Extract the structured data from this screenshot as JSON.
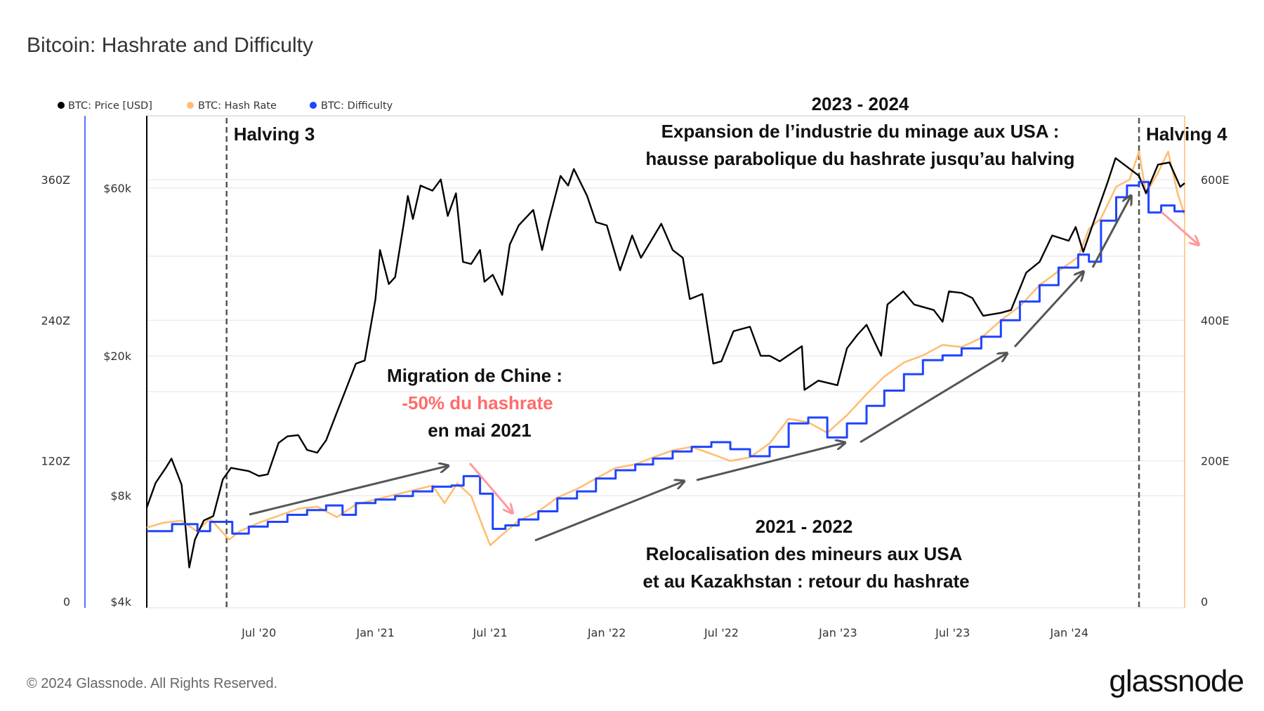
{
  "title": "Bitcoin: Hashrate and Difficulty",
  "footer": "© 2024 Glassnode. All Rights Reserved.",
  "logo": "glassnode",
  "colors": {
    "price": "#000000",
    "hash_rate": "#ffbe73",
    "difficulty": "#1f44ff",
    "highlight": "#ff7070",
    "arrow": "#555555"
  },
  "chart_data": {
    "type": "line",
    "x_range": [
      "2020-01-06",
      "2024-07-01"
    ],
    "x_ticks": [
      {
        "date": "2020-07-01",
        "label": "Jul '20"
      },
      {
        "date": "2021-01-01",
        "label": "Jan '21"
      },
      {
        "date": "2021-07-01",
        "label": "Jul '21"
      },
      {
        "date": "2022-01-01",
        "label": "Jan '22"
      },
      {
        "date": "2022-07-01",
        "label": "Jul '22"
      },
      {
        "date": "2023-01-01",
        "label": "Jan '23"
      },
      {
        "date": "2023-07-01",
        "label": "Jul '23"
      },
      {
        "date": "2024-01-01",
        "label": "Jan '24"
      }
    ],
    "axes": {
      "difficulty": {
        "side": "far-left",
        "scale": "linear",
        "range": [
          0,
          360
        ],
        "ticks": [
          {
            "v": 0,
            "label": "0"
          },
          {
            "v": 120,
            "label": "120Z"
          },
          {
            "v": 240,
            "label": "240Z"
          },
          {
            "v": 360,
            "label": "360Z"
          }
        ]
      },
      "price": {
        "side": "left",
        "scale": "log",
        "range": [
          4000,
          60000
        ],
        "ticks": [
          {
            "v": 4000,
            "label": "$4k"
          },
          {
            "v": 8000,
            "label": "$8k"
          },
          {
            "v": 20000,
            "label": "$20k"
          },
          {
            "v": 60000,
            "label": "$60k"
          }
        ]
      },
      "hash_rate": {
        "side": "right",
        "scale": "linear",
        "range": [
          0,
          600
        ],
        "ticks": [
          {
            "v": 0,
            "label": "0"
          },
          {
            "v": 200,
            "label": "200E"
          },
          {
            "v": 400,
            "label": "400E"
          },
          {
            "v": 600,
            "label": "600E"
          }
        ]
      }
    },
    "legend": {
      "placement": "top-left",
      "items": [
        "BTC: Price [USD]",
        "BTC: Hash Rate",
        "BTC: Difficulty"
      ]
    },
    "series": [
      {
        "name": "BTC: Price [USD]",
        "axis": "price",
        "points": [
          [
            "2020-01-06",
            7400
          ],
          [
            "2020-01-20",
            8700
          ],
          [
            "2020-02-05",
            9600
          ],
          [
            "2020-02-14",
            10200
          ],
          [
            "2020-03-01",
            8600
          ],
          [
            "2020-03-13",
            5000
          ],
          [
            "2020-03-22",
            6000
          ],
          [
            "2020-04-05",
            6800
          ],
          [
            "2020-04-20",
            7000
          ],
          [
            "2020-05-05",
            8900
          ],
          [
            "2020-05-18",
            9600
          ],
          [
            "2020-06-01",
            9500
          ],
          [
            "2020-06-15",
            9400
          ],
          [
            "2020-07-01",
            9100
          ],
          [
            "2020-07-15",
            9200
          ],
          [
            "2020-08-01",
            11300
          ],
          [
            "2020-08-15",
            11800
          ],
          [
            "2020-09-01",
            11900
          ],
          [
            "2020-09-15",
            10800
          ],
          [
            "2020-10-01",
            10600
          ],
          [
            "2020-10-15",
            11500
          ],
          [
            "2020-11-01",
            13800
          ],
          [
            "2020-11-15",
            16000
          ],
          [
            "2020-12-01",
            19000
          ],
          [
            "2020-12-15",
            19400
          ],
          [
            "2021-01-01",
            29000
          ],
          [
            "2021-01-08",
            40000
          ],
          [
            "2021-01-22",
            32000
          ],
          [
            "2021-02-01",
            33500
          ],
          [
            "2021-02-15",
            48000
          ],
          [
            "2021-02-21",
            57000
          ],
          [
            "2021-03-01",
            49000
          ],
          [
            "2021-03-13",
            61000
          ],
          [
            "2021-04-01",
            59000
          ],
          [
            "2021-04-14",
            63500
          ],
          [
            "2021-04-25",
            50000
          ],
          [
            "2021-05-08",
            58000
          ],
          [
            "2021-05-19",
            37000
          ],
          [
            "2021-06-01",
            36500
          ],
          [
            "2021-06-15",
            40000
          ],
          [
            "2021-06-22",
            32500
          ],
          [
            "2021-07-05",
            34000
          ],
          [
            "2021-07-20",
            29800
          ],
          [
            "2021-08-01",
            41500
          ],
          [
            "2021-08-15",
            47000
          ],
          [
            "2021-09-07",
            52000
          ],
          [
            "2021-09-21",
            40000
          ],
          [
            "2021-10-01",
            48000
          ],
          [
            "2021-10-20",
            65000
          ],
          [
            "2021-11-01",
            61000
          ],
          [
            "2021-11-10",
            68000
          ],
          [
            "2021-12-01",
            57000
          ],
          [
            "2021-12-15",
            48000
          ],
          [
            "2022-01-01",
            47000
          ],
          [
            "2022-01-22",
            35000
          ],
          [
            "2022-02-10",
            44000
          ],
          [
            "2022-02-24",
            38000
          ],
          [
            "2022-03-28",
            47500
          ],
          [
            "2022-04-15",
            40000
          ],
          [
            "2022-05-01",
            38000
          ],
          [
            "2022-05-12",
            29000
          ],
          [
            "2022-06-01",
            30000
          ],
          [
            "2022-06-18",
            19000
          ],
          [
            "2022-07-01",
            19300
          ],
          [
            "2022-07-20",
            23500
          ],
          [
            "2022-08-15",
            24200
          ],
          [
            "2022-09-01",
            20000
          ],
          [
            "2022-09-15",
            20000
          ],
          [
            "2022-10-01",
            19300
          ],
          [
            "2022-11-05",
            21300
          ],
          [
            "2022-11-09",
            16000
          ],
          [
            "2022-12-01",
            17000
          ],
          [
            "2022-12-31",
            16500
          ],
          [
            "2023-01-15",
            21000
          ],
          [
            "2023-02-01",
            23000
          ],
          [
            "2023-02-15",
            24500
          ],
          [
            "2023-03-10",
            20000
          ],
          [
            "2023-03-20",
            28000
          ],
          [
            "2023-04-14",
            30500
          ],
          [
            "2023-05-01",
            28000
          ],
          [
            "2023-06-01",
            27000
          ],
          [
            "2023-06-15",
            25000
          ],
          [
            "2023-06-25",
            30500
          ],
          [
            "2023-07-15",
            30200
          ],
          [
            "2023-08-01",
            29200
          ],
          [
            "2023-08-18",
            26000
          ],
          [
            "2023-09-15",
            26500
          ],
          [
            "2023-10-01",
            27000
          ],
          [
            "2023-10-25",
            34500
          ],
          [
            "2023-11-15",
            37000
          ],
          [
            "2023-12-05",
            44000
          ],
          [
            "2023-12-31",
            42500
          ],
          [
            "2024-01-11",
            46500
          ],
          [
            "2024-01-23",
            39500
          ],
          [
            "2024-02-15",
            52000
          ],
          [
            "2024-03-01",
            62000
          ],
          [
            "2024-03-14",
            73000
          ],
          [
            "2024-04-01",
            69000
          ],
          [
            "2024-04-20",
            65000
          ],
          [
            "2024-05-01",
            58000
          ],
          [
            "2024-05-20",
            70000
          ],
          [
            "2024-06-07",
            71000
          ],
          [
            "2024-06-24",
            60500
          ],
          [
            "2024-07-01",
            62000
          ]
        ]
      },
      {
        "name": "BTC: Hash Rate",
        "axis": "hash_rate",
        "points": [
          [
            "2020-01-06",
            105
          ],
          [
            "2020-02-01",
            112
          ],
          [
            "2020-03-01",
            115
          ],
          [
            "2020-03-25",
            100
          ],
          [
            "2020-04-15",
            118
          ],
          [
            "2020-05-15",
            88
          ],
          [
            "2020-06-01",
            100
          ],
          [
            "2020-07-01",
            112
          ],
          [
            "2020-08-01",
            122
          ],
          [
            "2020-09-01",
            132
          ],
          [
            "2020-10-01",
            135
          ],
          [
            "2020-11-01",
            120
          ],
          [
            "2020-12-01",
            138
          ],
          [
            "2021-01-01",
            145
          ],
          [
            "2021-02-01",
            152
          ],
          [
            "2021-03-01",
            158
          ],
          [
            "2021-04-01",
            165
          ],
          [
            "2021-04-20",
            140
          ],
          [
            "2021-05-10",
            168
          ],
          [
            "2021-06-01",
            150
          ],
          [
            "2021-06-20",
            105
          ],
          [
            "2021-07-01",
            80
          ],
          [
            "2021-07-20",
            95
          ],
          [
            "2021-08-15",
            115
          ],
          [
            "2021-09-15",
            128
          ],
          [
            "2021-10-15",
            148
          ],
          [
            "2021-11-15",
            160
          ],
          [
            "2021-12-15",
            175
          ],
          [
            "2022-01-15",
            190
          ],
          [
            "2022-02-15",
            195
          ],
          [
            "2022-03-15",
            205
          ],
          [
            "2022-04-15",
            215
          ],
          [
            "2022-05-15",
            220
          ],
          [
            "2022-06-15",
            210
          ],
          [
            "2022-07-15",
            200
          ],
          [
            "2022-08-15",
            205
          ],
          [
            "2022-09-15",
            225
          ],
          [
            "2022-10-15",
            260
          ],
          [
            "2022-11-15",
            255
          ],
          [
            "2022-12-15",
            240
          ],
          [
            "2023-01-15",
            265
          ],
          [
            "2023-02-15",
            295
          ],
          [
            "2023-03-15",
            320
          ],
          [
            "2023-04-15",
            340
          ],
          [
            "2023-05-15",
            350
          ],
          [
            "2023-06-15",
            365
          ],
          [
            "2023-07-15",
            362
          ],
          [
            "2023-08-15",
            375
          ],
          [
            "2023-09-15",
            400
          ],
          [
            "2023-10-15",
            420
          ],
          [
            "2023-11-15",
            450
          ],
          [
            "2023-12-15",
            470
          ],
          [
            "2024-01-15",
            490
          ],
          [
            "2024-02-01",
            530
          ],
          [
            "2024-02-20",
            545
          ],
          [
            "2024-03-15",
            590
          ],
          [
            "2024-04-05",
            600
          ],
          [
            "2024-04-20",
            640
          ],
          [
            "2024-05-01",
            580
          ],
          [
            "2024-05-20",
            610
          ],
          [
            "2024-06-05",
            640
          ],
          [
            "2024-06-20",
            580
          ],
          [
            "2024-07-01",
            550
          ]
        ]
      },
      {
        "name": "BTC: Difficulty",
        "axis": "difficulty",
        "points": [
          [
            "2020-01-06",
            60
          ],
          [
            "2020-02-15",
            66
          ],
          [
            "2020-03-26",
            60
          ],
          [
            "2020-04-15",
            68
          ],
          [
            "2020-05-20",
            58
          ],
          [
            "2020-06-15",
            64
          ],
          [
            "2020-07-15",
            68
          ],
          [
            "2020-08-15",
            74
          ],
          [
            "2020-09-15",
            78
          ],
          [
            "2020-10-15",
            82
          ],
          [
            "2020-11-10",
            74
          ],
          [
            "2020-12-01",
            84
          ],
          [
            "2021-01-01",
            87
          ],
          [
            "2021-02-01",
            90
          ],
          [
            "2021-03-01",
            94
          ],
          [
            "2021-04-01",
            98
          ],
          [
            "2021-05-01",
            99
          ],
          [
            "2021-05-20",
            107
          ],
          [
            "2021-06-15",
            92
          ],
          [
            "2021-07-05",
            62
          ],
          [
            "2021-07-25",
            65
          ],
          [
            "2021-08-15",
            70
          ],
          [
            "2021-09-15",
            77
          ],
          [
            "2021-10-15",
            88
          ],
          [
            "2021-11-15",
            94
          ],
          [
            "2021-12-15",
            105
          ],
          [
            "2022-01-15",
            112
          ],
          [
            "2022-02-15",
            117
          ],
          [
            "2022-03-15",
            122
          ],
          [
            "2022-04-15",
            128
          ],
          [
            "2022-05-15",
            132
          ],
          [
            "2022-06-15",
            136
          ],
          [
            "2022-07-15",
            130
          ],
          [
            "2022-08-15",
            124
          ],
          [
            "2022-09-15",
            132
          ],
          [
            "2022-10-15",
            152
          ],
          [
            "2022-11-15",
            157
          ],
          [
            "2022-12-15",
            140
          ],
          [
            "2023-01-15",
            152
          ],
          [
            "2023-02-15",
            167
          ],
          [
            "2023-03-15",
            180
          ],
          [
            "2023-04-15",
            194
          ],
          [
            "2023-05-15",
            206
          ],
          [
            "2023-06-15",
            210
          ],
          [
            "2023-07-15",
            216
          ],
          [
            "2023-08-15",
            226
          ],
          [
            "2023-09-15",
            240
          ],
          [
            "2023-10-15",
            256
          ],
          [
            "2023-11-15",
            270
          ],
          [
            "2023-12-15",
            285
          ],
          [
            "2024-01-15",
            296
          ],
          [
            "2024-02-01",
            290
          ],
          [
            "2024-02-20",
            325
          ],
          [
            "2024-03-15",
            345
          ],
          [
            "2024-04-01",
            355
          ],
          [
            "2024-04-20",
            358
          ],
          [
            "2024-05-05",
            332
          ],
          [
            "2024-05-25",
            338
          ],
          [
            "2024-06-15",
            333
          ],
          [
            "2024-07-01",
            333
          ]
        ]
      }
    ],
    "events": [
      {
        "date": "2020-05-11",
        "label": "Halving 3"
      },
      {
        "date": "2024-04-20",
        "label": "Halving 4"
      }
    ],
    "annotations": {
      "china": {
        "line1": "Migration de Chine :",
        "line2": "-50% du hashrate",
        "line3": "en mai 2021"
      },
      "period_2023": {
        "line1": "2023 - 2024",
        "line2": "Expansion de l’industrie du minage aux USA :",
        "line3": "hausse parabolique du hashrate jusqu’au halving"
      },
      "period_2021": {
        "line1": "2021 - 2022",
        "line2": "Relocalisation des mineurs aux USA",
        "line3": "et au Kazakhstan : retour du hashrate"
      }
    }
  }
}
